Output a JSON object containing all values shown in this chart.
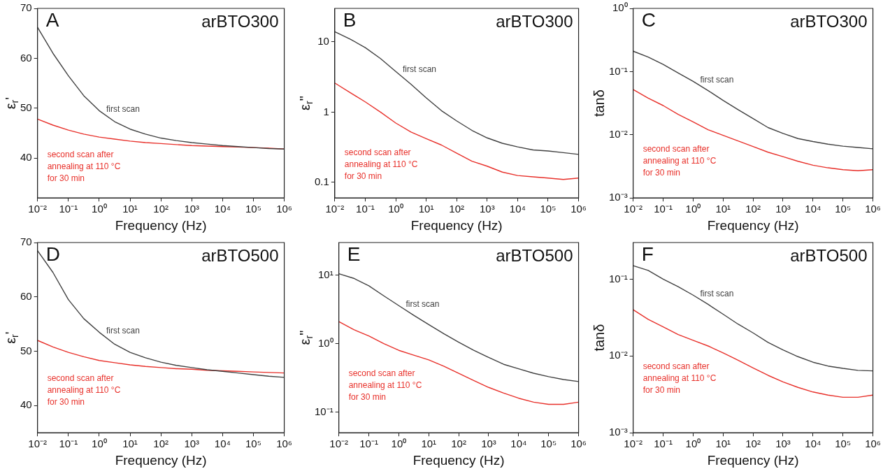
{
  "chart_data": [
    {
      "type": "line",
      "title": "arBTO300",
      "annotations": [
        "A"
      ],
      "xlabel": "Frequency (Hz)",
      "ylabel": "ε$_{r}$'",
      "log": "x",
      "grid": false,
      "legend": false,
      "xlim": [
        0.01,
        1000000
      ],
      "xticks": [
        {
          "value": 0.01,
          "label": "10⁻²"
        },
        {
          "value": 0.1,
          "label": "10⁻¹"
        },
        {
          "value": 1,
          "label": "10⁰"
        },
        {
          "value": 10,
          "label": "10¹"
        },
        {
          "value": 100,
          "label": "10²"
        },
        {
          "value": 1000,
          "label": "10³"
        },
        {
          "value": 10000,
          "label": "10⁴"
        },
        {
          "value": 100000,
          "label": "10⁵"
        },
        {
          "value": 1000000,
          "label": "10⁶"
        }
      ],
      "ylim": [
        32,
        70
      ],
      "yticks": [
        40,
        50,
        60,
        70
      ],
      "x": [
        0.01,
        0.0316,
        0.1,
        0.316,
        1,
        3.16,
        10,
        31.6,
        100,
        316,
        1000,
        3160,
        10000,
        31600,
        100000,
        316000,
        1000000
      ],
      "series": [
        {
          "name": "first scan",
          "color": "#404040",
          "values": [
            66.2,
            61,
            56.5,
            52.5,
            49.5,
            47.3,
            45.8,
            44.8,
            44.0,
            43.5,
            43.1,
            42.8,
            42.5,
            42.3,
            42.1,
            41.9,
            41.8
          ]
        },
        {
          "name": "second scan after annealing at 110 °C for 30 min",
          "color": "#e8302a",
          "values": [
            47.8,
            46.6,
            45.6,
            44.8,
            44.2,
            43.8,
            43.4,
            43.1,
            42.9,
            42.7,
            42.5,
            42.4,
            42.3,
            42.2,
            42.1,
            42.0,
            41.8
          ]
        }
      ]
    },
    {
      "type": "line",
      "title": "arBTO300",
      "annotations": [
        "B"
      ],
      "xlabel": "Frequency (Hz)",
      "ylabel": "ε$_{r}$\"",
      "log": "xy",
      "grid": false,
      "legend": false,
      "xlim": [
        0.01,
        1000000
      ],
      "xticks": [
        {
          "value": 0.01,
          "label": "10⁻²"
        },
        {
          "value": 0.1,
          "label": "10⁻¹"
        },
        {
          "value": 1,
          "label": "10⁰"
        },
        {
          "value": 10,
          "label": "10¹"
        },
        {
          "value": 100,
          "label": "10²"
        },
        {
          "value": 1000,
          "label": "10³"
        },
        {
          "value": 10000,
          "label": "10⁴"
        },
        {
          "value": 100000,
          "label": "10⁵"
        },
        {
          "value": 1000000,
          "label": "10⁶"
        }
      ],
      "ylim": [
        0.06,
        30
      ],
      "yticks": [
        0.1,
        1,
        10
      ],
      "x": [
        0.01,
        0.0316,
        0.1,
        0.316,
        1,
        3.16,
        10,
        31.6,
        100,
        316,
        1000,
        3160,
        10000,
        31600,
        100000,
        316000,
        1000000
      ],
      "series": [
        {
          "name": "first scan",
          "color": "#404040",
          "values": [
            14,
            11,
            8.3,
            5.8,
            3.8,
            2.5,
            1.6,
            1.05,
            0.75,
            0.55,
            0.43,
            0.36,
            0.32,
            0.29,
            0.28,
            0.265,
            0.25
          ]
        },
        {
          "name": "second scan after annealing at 110 °C for 30 min",
          "color": "#e8302a",
          "values": [
            2.6,
            1.9,
            1.4,
            1.0,
            0.7,
            0.52,
            0.42,
            0.34,
            0.26,
            0.2,
            0.17,
            0.14,
            0.125,
            0.12,
            0.115,
            0.11,
            0.115
          ]
        }
      ]
    },
    {
      "type": "line",
      "title": "arBTO300",
      "annotations": [
        "C"
      ],
      "xlabel": "Frequency (Hz)",
      "ylabel": "tanδ",
      "log": "xy",
      "grid": false,
      "legend": false,
      "xlim": [
        0.01,
        1000000
      ],
      "xticks": [
        {
          "value": 0.01,
          "label": "10⁻²"
        },
        {
          "value": 0.1,
          "label": "10⁻¹"
        },
        {
          "value": 1,
          "label": "10⁰"
        },
        {
          "value": 10,
          "label": "10¹"
        },
        {
          "value": 100,
          "label": "10²"
        },
        {
          "value": 1000,
          "label": "10³"
        },
        {
          "value": 10000,
          "label": "10⁴"
        },
        {
          "value": 100000,
          "label": "10⁵"
        },
        {
          "value": 1000000,
          "label": "10⁶"
        }
      ],
      "ylim": [
        0.001,
        1
      ],
      "yticks": [
        {
          "value": 0.001,
          "label": "10⁻³"
        },
        {
          "value": 0.01,
          "label": "10⁻²"
        },
        {
          "value": 0.1,
          "label": "10⁻¹"
        },
        {
          "value": 1,
          "label": "10⁰"
        }
      ],
      "x": [
        0.01,
        0.0316,
        0.1,
        0.316,
        1,
        3.16,
        10,
        31.6,
        100,
        316,
        1000,
        3160,
        10000,
        31600,
        100000,
        316000,
        1000000
      ],
      "series": [
        {
          "name": "first scan",
          "color": "#404040",
          "values": [
            0.21,
            0.17,
            0.13,
            0.095,
            0.07,
            0.05,
            0.035,
            0.025,
            0.018,
            0.013,
            0.0105,
            0.0087,
            0.0078,
            0.0071,
            0.0066,
            0.0063,
            0.006
          ]
        },
        {
          "name": "second scan after annealing at 110 °C for 30 min",
          "color": "#e8302a",
          "values": [
            0.052,
            0.038,
            0.029,
            0.021,
            0.016,
            0.012,
            0.0098,
            0.008,
            0.0065,
            0.0053,
            0.0045,
            0.0038,
            0.0033,
            0.003,
            0.0028,
            0.0027,
            0.0028
          ]
        }
      ]
    },
    {
      "type": "line",
      "title": "arBTO500",
      "annotations": [
        "D"
      ],
      "xlabel": "Frequency (Hz)",
      "ylabel": "ε$_{r}$'",
      "log": "x",
      "grid": false,
      "legend": false,
      "xlim": [
        0.01,
        1000000
      ],
      "xticks": [
        {
          "value": 0.01,
          "label": "10⁻²"
        },
        {
          "value": 0.1,
          "label": "10⁻¹"
        },
        {
          "value": 1,
          "label": "10⁰"
        },
        {
          "value": 10,
          "label": "10¹"
        },
        {
          "value": 100,
          "label": "10²"
        },
        {
          "value": 1000,
          "label": "10³"
        },
        {
          "value": 10000,
          "label": "10⁴"
        },
        {
          "value": 100000,
          "label": "10⁵"
        },
        {
          "value": 1000000,
          "label": "10⁶"
        }
      ],
      "ylim": [
        35,
        70
      ],
      "yticks": [
        40,
        50,
        60,
        70
      ],
      "x": [
        0.01,
        0.0316,
        0.1,
        0.316,
        1,
        3.16,
        10,
        31.6,
        100,
        316,
        1000,
        3160,
        10000,
        31600,
        100000,
        316000,
        1000000
      ],
      "series": [
        {
          "name": "first scan",
          "color": "#404040",
          "values": [
            68.5,
            64.5,
            59.5,
            56,
            53.5,
            51.3,
            49.8,
            48.8,
            48,
            47.4,
            47,
            46.6,
            46.3,
            46,
            45.7,
            45.4,
            45.2
          ]
        },
        {
          "name": "second scan after annealing at 110 °C for 30 min",
          "color": "#e8302a",
          "values": [
            52,
            50.8,
            49.8,
            49,
            48.3,
            47.9,
            47.5,
            47.2,
            47,
            46.8,
            46.7,
            46.5,
            46.4,
            46.3,
            46.2,
            46.1,
            46
          ]
        }
      ]
    },
    {
      "type": "line",
      "title": "arBTO500",
      "annotations": [
        "E"
      ],
      "xlabel": "Frequency (Hz)",
      "ylabel": "ε$_{r}$\"",
      "log": "xy",
      "grid": false,
      "legend": false,
      "xlim": [
        0.01,
        1000000
      ],
      "xticks": [
        {
          "value": 0.01,
          "label": "10⁻²"
        },
        {
          "value": 0.1,
          "label": "10⁻¹"
        },
        {
          "value": 1,
          "label": "10⁰"
        },
        {
          "value": 10,
          "label": "10¹"
        },
        {
          "value": 100,
          "label": "10²"
        },
        {
          "value": 1000,
          "label": "10³"
        },
        {
          "value": 10000,
          "label": "10⁴"
        },
        {
          "value": 100000,
          "label": "10⁵"
        },
        {
          "value": 1000000,
          "label": "10⁶"
        }
      ],
      "ylim": [
        0.05,
        30
      ],
      "yticks": [
        {
          "value": 0.1,
          "label": "10⁻¹"
        },
        {
          "value": 1,
          "label": "10⁰"
        },
        {
          "value": 10,
          "label": "10¹"
        }
      ],
      "x": [
        0.01,
        0.0316,
        0.1,
        0.316,
        1,
        3.16,
        10,
        31.6,
        100,
        316,
        1000,
        3160,
        10000,
        31600,
        100000,
        316000,
        1000000
      ],
      "series": [
        {
          "name": "first scan",
          "color": "#404040",
          "values": [
            10.5,
            9,
            7,
            5,
            3.6,
            2.6,
            1.9,
            1.4,
            1.05,
            0.8,
            0.63,
            0.5,
            0.43,
            0.37,
            0.33,
            0.3,
            0.28
          ]
        },
        {
          "name": "second scan after annealing at 110 °C for 30 min",
          "color": "#e8302a",
          "values": [
            2.1,
            1.6,
            1.3,
            1.0,
            0.8,
            0.68,
            0.58,
            0.47,
            0.37,
            0.29,
            0.23,
            0.19,
            0.16,
            0.14,
            0.13,
            0.13,
            0.14
          ]
        }
      ]
    },
    {
      "type": "line",
      "title": "arBTO500",
      "annotations": [
        "F"
      ],
      "xlabel": "Frequency (Hz)",
      "ylabel": "tanδ",
      "log": "xy",
      "grid": false,
      "legend": false,
      "xlim": [
        0.01,
        1000000
      ],
      "xticks": [
        {
          "value": 0.01,
          "label": "10⁻²"
        },
        {
          "value": 0.1,
          "label": "10⁻¹"
        },
        {
          "value": 1,
          "label": "10⁰"
        },
        {
          "value": 10,
          "label": "10¹"
        },
        {
          "value": 100,
          "label": "10²"
        },
        {
          "value": 1000,
          "label": "10³"
        },
        {
          "value": 10000,
          "label": "10⁴"
        },
        {
          "value": 100000,
          "label": "10⁵"
        },
        {
          "value": 1000000,
          "label": "10⁶"
        }
      ],
      "ylim": [
        0.001,
        0.3
      ],
      "yticks": [
        {
          "value": 0.001,
          "label": "10⁻³"
        },
        {
          "value": 0.01,
          "label": "10⁻²"
        },
        {
          "value": 0.1,
          "label": "10⁻¹"
        }
      ],
      "x": [
        0.01,
        0.0316,
        0.1,
        0.316,
        1,
        3.16,
        10,
        31.6,
        100,
        316,
        1000,
        3160,
        10000,
        31600,
        100000,
        316000,
        1000000
      ],
      "series": [
        {
          "name": "first scan",
          "color": "#404040",
          "values": [
            0.15,
            0.13,
            0.1,
            0.08,
            0.062,
            0.047,
            0.035,
            0.026,
            0.02,
            0.015,
            0.012,
            0.0098,
            0.0083,
            0.0074,
            0.0069,
            0.0065,
            0.0064
          ]
        },
        {
          "name": "second scan after annealing at 110 °C for 30 min",
          "color": "#e8302a",
          "values": [
            0.04,
            0.03,
            0.024,
            0.019,
            0.016,
            0.0135,
            0.011,
            0.0088,
            0.007,
            0.0056,
            0.0046,
            0.0039,
            0.0034,
            0.0031,
            0.0029,
            0.0029,
            0.0031
          ]
        }
      ]
    }
  ]
}
